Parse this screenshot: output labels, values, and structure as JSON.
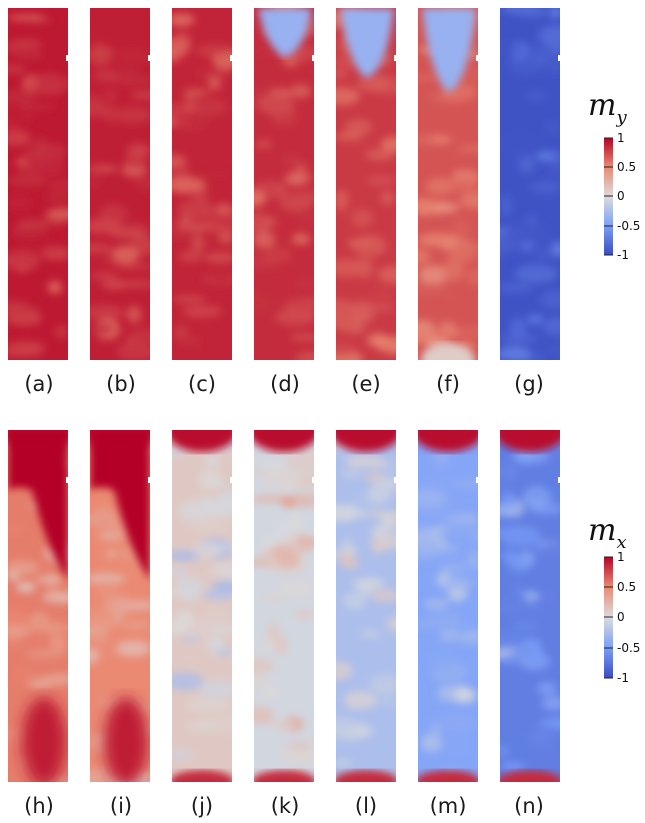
{
  "colorbar_ticks": [
    "1",
    "0.5",
    "0",
    "-0.5",
    "-1"
  ],
  "rows": [
    {
      "component_symbol": "m",
      "component_subscript": "y",
      "panels": [
        {
          "label": "(a)",
          "top_blue_extent": 0.0,
          "bottom_blue_extent": 0.0,
          "base_level": 0.92
        },
        {
          "label": "(b)",
          "top_blue_extent": 0.0,
          "bottom_blue_extent": 0.0,
          "base_level": 0.9
        },
        {
          "label": "(c)",
          "top_blue_extent": 0.0,
          "bottom_blue_extent": 0.0,
          "base_level": 0.88
        },
        {
          "label": "(d)",
          "top_blue_extent": 0.14,
          "bottom_blue_extent": 0.0,
          "base_level": 0.85
        },
        {
          "label": "(e)",
          "top_blue_extent": 0.2,
          "bottom_blue_extent": 0.0,
          "base_level": 0.8
        },
        {
          "label": "(f)",
          "top_blue_extent": 0.24,
          "bottom_blue_extent": 0.05,
          "base_level": 0.7
        },
        {
          "label": "(g)",
          "top_blue_extent": 1.0,
          "bottom_blue_extent": 0.0,
          "base_level": -0.96
        }
      ]
    },
    {
      "component_symbol": "m",
      "component_subscript": "x",
      "panels": [
        {
          "label": "(h)",
          "top_blue_extent": 0.0,
          "bottom_blue_extent": 0.0,
          "base_level": 0.55
        },
        {
          "label": "(i)",
          "top_blue_extent": 0.0,
          "bottom_blue_extent": 0.0,
          "base_level": 0.5
        },
        {
          "label": "(j)",
          "top_blue_extent": 0.0,
          "bottom_blue_extent": 0.0,
          "base_level": 0.12
        },
        {
          "label": "(k)",
          "top_blue_extent": 0.0,
          "bottom_blue_extent": 0.0,
          "base_level": -0.05
        },
        {
          "label": "(l)",
          "top_blue_extent": 0.0,
          "bottom_blue_extent": 0.0,
          "base_level": -0.25
        },
        {
          "label": "(m)",
          "top_blue_extent": 0.0,
          "bottom_blue_extent": 0.0,
          "base_level": -0.45
        },
        {
          "label": "(n)",
          "top_blue_extent": 0.0,
          "bottom_blue_extent": 0.0,
          "base_level": -0.7
        }
      ]
    }
  ]
}
